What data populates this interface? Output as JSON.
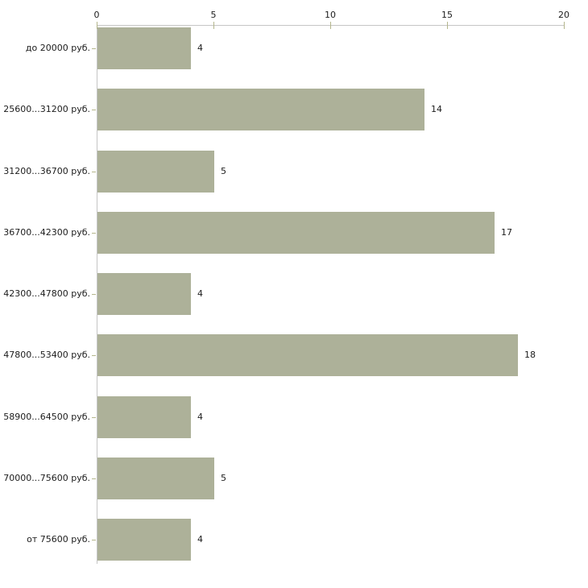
{
  "chart_data": {
    "type": "bar",
    "orientation": "horizontal",
    "title": "",
    "categories": [
      "до 20000 руб.",
      "25600...31200 руб.",
      "31200...36700 руб.",
      "36700...42300 руб.",
      "42300...47800 руб.",
      "47800...53400 руб.",
      "58900...64500 руб.",
      "70000...75600 руб.",
      "от 75600 руб."
    ],
    "values": [
      4,
      14,
      5,
      17,
      4,
      18,
      4,
      5,
      4
    ],
    "value_labels": [
      "4",
      "14",
      "5",
      "17",
      "4",
      "18",
      "4",
      "5",
      "4"
    ],
    "x_ticks": [
      "0",
      "5",
      "10",
      "15",
      "20"
    ],
    "x_tick_values": [
      0,
      5,
      10,
      15,
      20
    ],
    "xlim": [
      0,
      20
    ],
    "xlabel": "",
    "ylabel": "",
    "axis_position": "top",
    "grid": "off",
    "legend": "none",
    "colors": {
      "bar": "#adb199",
      "axis_line": "#c5c5c5",
      "tick_mark": "#b4b68c",
      "text": "#1c1c1c",
      "background": "#ffffff"
    }
  }
}
